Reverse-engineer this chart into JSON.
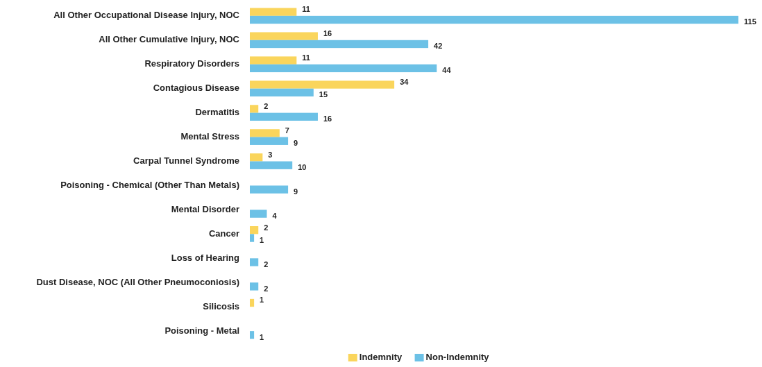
{
  "chart_data": {
    "type": "bar",
    "orientation": "horizontal",
    "data_labels": true,
    "legend": "bottom",
    "categories": [
      "All Other Occupational Disease Injury, NOC",
      "All Other Cumulative Injury, NOC",
      "Respiratory Disorders",
      "Contagious Disease",
      "Dermatitis",
      "Mental Stress",
      "Carpal Tunnel Syndrome",
      "Poisoning - Chemical (Other Than Metals)",
      "Mental Disorder",
      "Cancer",
      "Loss of Hearing",
      "Dust Disease, NOC (All Other Pneumoconiosis)",
      "Silicosis",
      "Poisoning - Metal"
    ],
    "series": [
      {
        "name": "Indemnity",
        "color": "#fad55c",
        "values": [
          11,
          16,
          11,
          34,
          2,
          7,
          3,
          null,
          null,
          2,
          null,
          null,
          1,
          null
        ]
      },
      {
        "name": "Non-Indemnity",
        "color": "#6cc1e6",
        "values": [
          115,
          42,
          44,
          15,
          16,
          9,
          10,
          9,
          4,
          1,
          2,
          2,
          null,
          1
        ]
      }
    ]
  }
}
